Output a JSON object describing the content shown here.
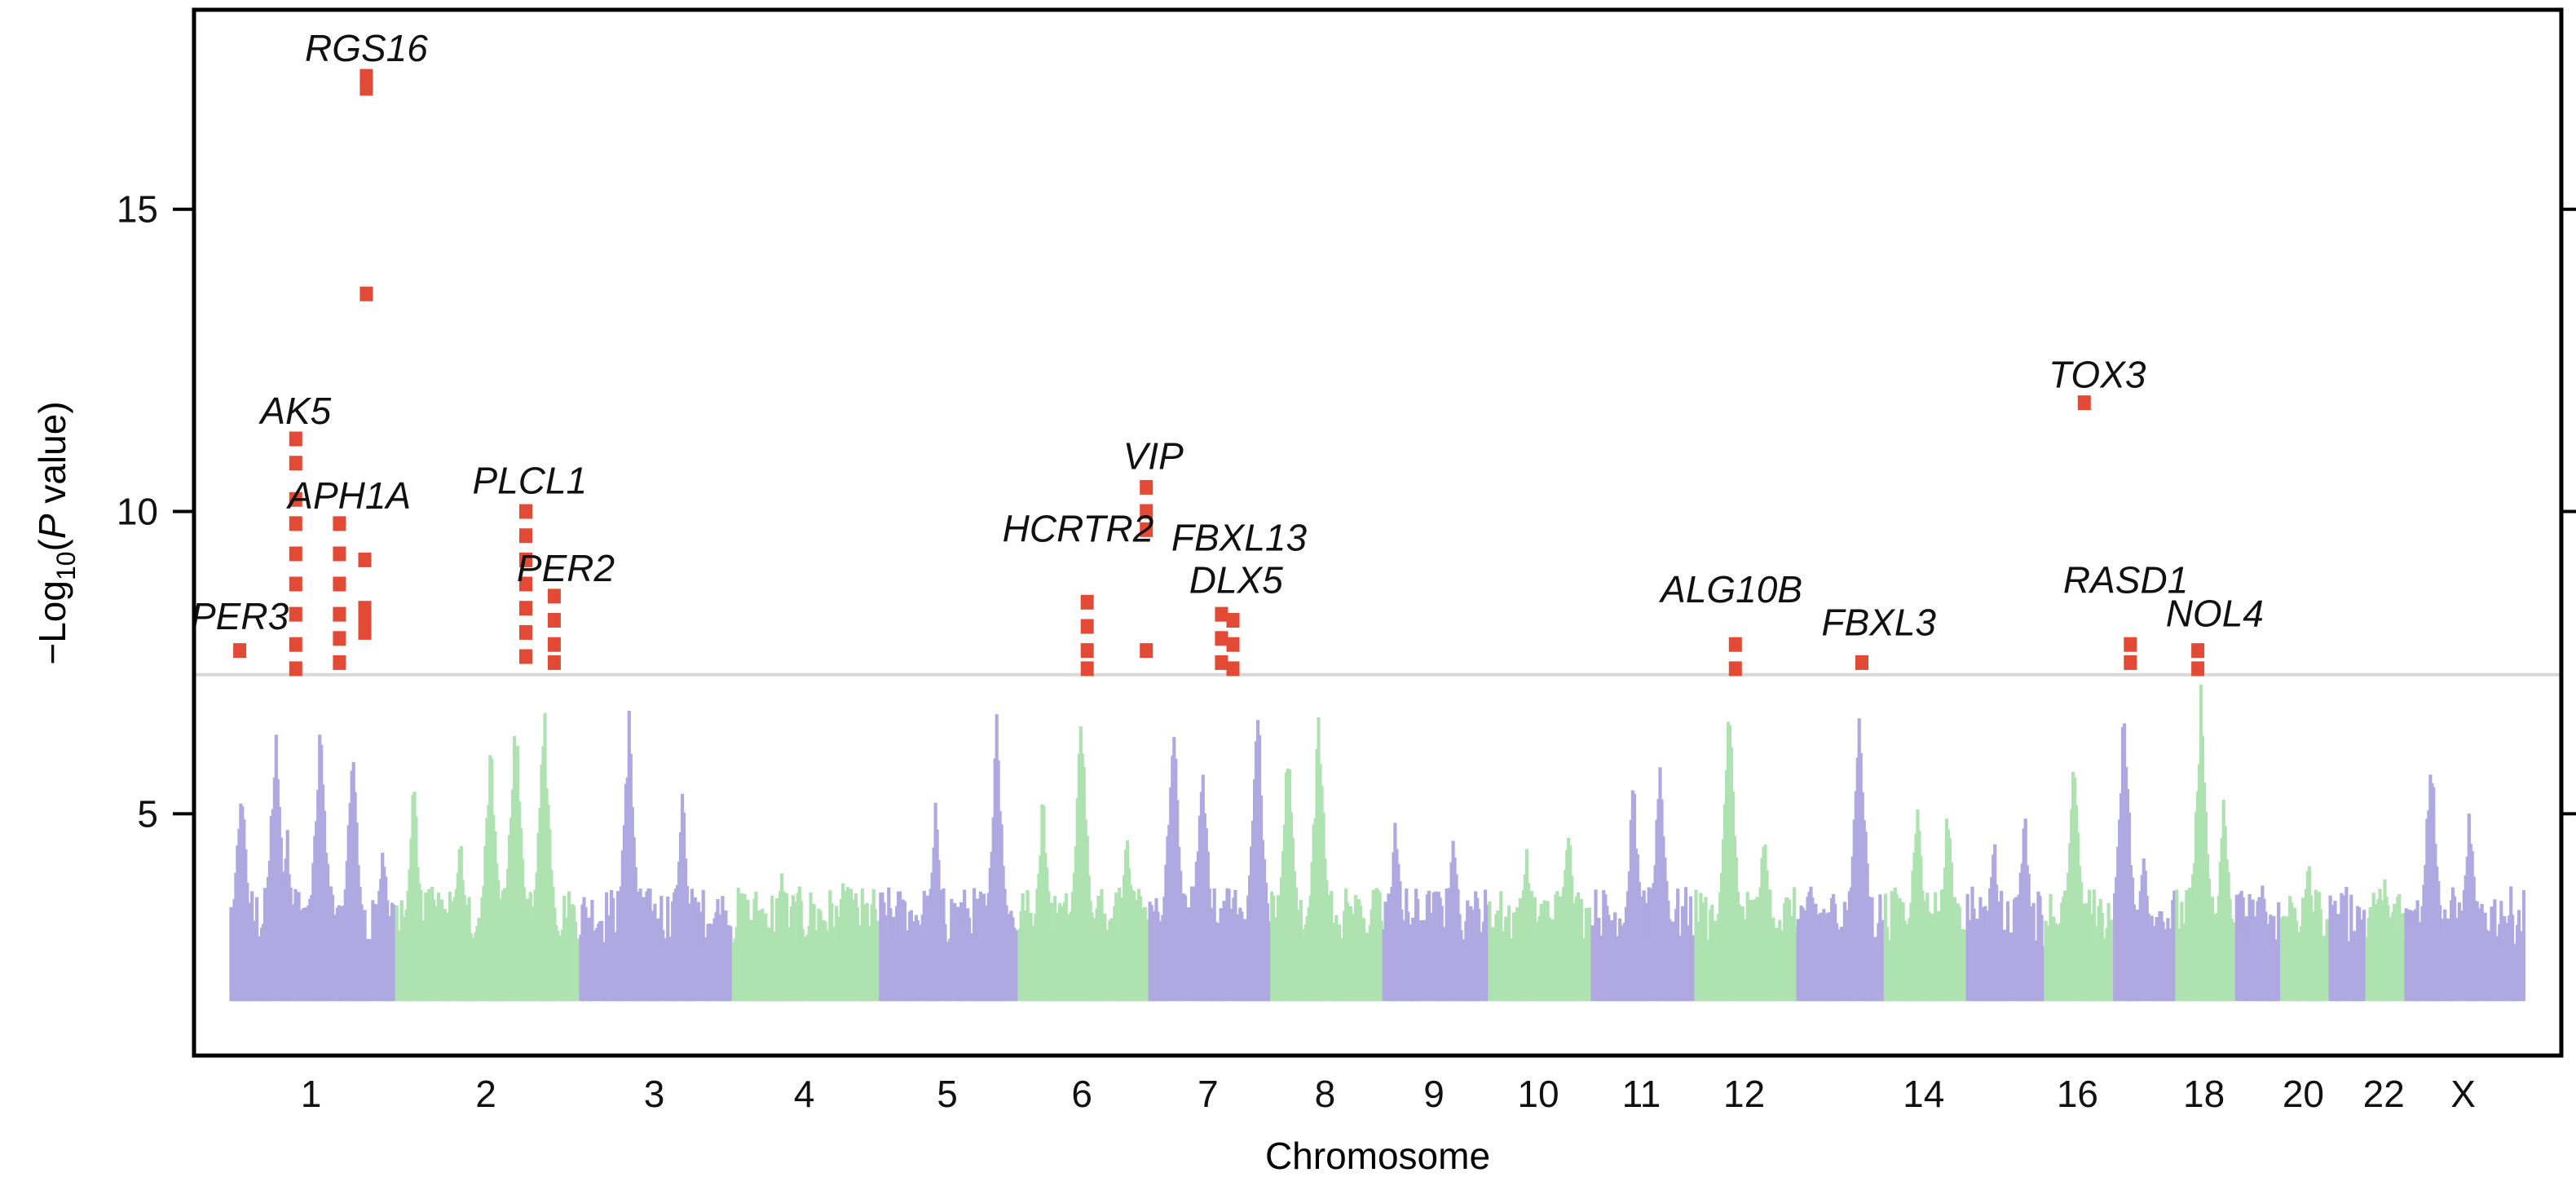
{
  "chart_data": {
    "type": "scatter",
    "title": "",
    "xlabel": "Chromosome",
    "ylabel_prefix": "−Log",
    "ylabel_sub": "10",
    "ylabel_open": "(",
    "ylabel_italic": "P",
    "ylabel_rest": " value)",
    "ylim": [
      1,
      18.3
    ],
    "y_ticks": [
      5,
      10,
      15
    ],
    "significance_threshold": 7.3,
    "colors": {
      "odd_chromosome": "#b0a8e0",
      "even_chromosome": "#aee3b1",
      "significant": "#e34a35",
      "threshold_line": "#d8d8d8",
      "frame": "#000000",
      "text": "#111111"
    },
    "chromosomes": [
      {
        "label": "1",
        "start": 0.0,
        "end": 216.0,
        "show_label": true
      },
      {
        "label": "2",
        "start": 216.0,
        "end": 456.0,
        "show_label": true
      },
      {
        "label": "3",
        "start": 456.0,
        "end": 655.0,
        "show_label": true
      },
      {
        "label": "4",
        "start": 655.0,
        "end": 847.0,
        "show_label": true
      },
      {
        "label": "5",
        "start": 847.0,
        "end": 1028.0,
        "show_label": true
      },
      {
        "label": "6",
        "start": 1028.0,
        "end": 1198.0,
        "show_label": true
      },
      {
        "label": "7",
        "start": 1198.0,
        "end": 1357.0,
        "show_label": true
      },
      {
        "label": "8",
        "start": 1357.0,
        "end": 1503.0,
        "show_label": true
      },
      {
        "label": "9",
        "start": 1503.0,
        "end": 1641.0,
        "show_label": true
      },
      {
        "label": "10",
        "start": 1641.0,
        "end": 1775.0,
        "show_label": true
      },
      {
        "label": "11",
        "start": 1775.0,
        "end": 1910.0,
        "show_label": true
      },
      {
        "label": "12",
        "start": 1910.0,
        "end": 2043.0,
        "show_label": true
      },
      {
        "label": "13",
        "start": 2043.0,
        "end": 2157.0,
        "show_label": false
      },
      {
        "label": "14",
        "start": 2157.0,
        "end": 2264.0,
        "show_label": true
      },
      {
        "label": "15",
        "start": 2264.0,
        "end": 2366.0,
        "show_label": false
      },
      {
        "label": "16",
        "start": 2366.0,
        "end": 2456.0,
        "show_label": true
      },
      {
        "label": "17",
        "start": 2456.0,
        "end": 2537.0,
        "show_label": false
      },
      {
        "label": "18",
        "start": 2537.0,
        "end": 2615.0,
        "show_label": true
      },
      {
        "label": "19",
        "start": 2615.0,
        "end": 2674.0,
        "show_label": false
      },
      {
        "label": "20",
        "start": 2674.0,
        "end": 2737.0,
        "show_label": true
      },
      {
        "label": "21",
        "start": 2737.0,
        "end": 2785.0,
        "show_label": false
      },
      {
        "label": "22",
        "start": 2785.0,
        "end": 2836.0,
        "show_label": true
      },
      {
        "label": "X",
        "start": 2836.0,
        "end": 2992.0,
        "show_label": true
      }
    ],
    "peaks": [
      {
        "pos": 15,
        "h": 6.0
      },
      {
        "pos": 60,
        "h": 7.0
      },
      {
        "pos": 75,
        "h": 4.8
      },
      {
        "pos": 118,
        "h": 7.2
      },
      {
        "pos": 160,
        "h": 6.6
      },
      {
        "pos": 200,
        "h": 4.6
      },
      {
        "pos": 240,
        "h": 5.8
      },
      {
        "pos": 300,
        "h": 4.9
      },
      {
        "pos": 340,
        "h": 6.7
      },
      {
        "pos": 372,
        "h": 7.2
      },
      {
        "pos": 410,
        "h": 7.2
      },
      {
        "pos": 520,
        "h": 7.0
      },
      {
        "pos": 590,
        "h": 5.6
      },
      {
        "pos": 720,
        "h": 4.2
      },
      {
        "pos": 800,
        "h": 4.0
      },
      {
        "pos": 920,
        "h": 5.3
      },
      {
        "pos": 1000,
        "h": 6.9
      },
      {
        "pos": 1060,
        "h": 5.6
      },
      {
        "pos": 1110,
        "h": 7.2
      },
      {
        "pos": 1170,
        "h": 5.0
      },
      {
        "pos": 1230,
        "h": 7.2
      },
      {
        "pos": 1268,
        "h": 6.5
      },
      {
        "pos": 1340,
        "h": 7.2
      },
      {
        "pos": 1380,
        "h": 6.6
      },
      {
        "pos": 1420,
        "h": 7.1
      },
      {
        "pos": 1520,
        "h": 5.2
      },
      {
        "pos": 1595,
        "h": 4.9
      },
      {
        "pos": 1690,
        "h": 4.6
      },
      {
        "pos": 1745,
        "h": 5.2
      },
      {
        "pos": 1830,
        "h": 5.8
      },
      {
        "pos": 1865,
        "h": 6.3
      },
      {
        "pos": 1955,
        "h": 7.2
      },
      {
        "pos": 2000,
        "h": 5.0
      },
      {
        "pos": 2090,
        "h": 3.8
      },
      {
        "pos": 2125,
        "h": 7.2
      },
      {
        "pos": 2200,
        "h": 5.6
      },
      {
        "pos": 2240,
        "h": 5.4
      },
      {
        "pos": 2300,
        "h": 4.8
      },
      {
        "pos": 2340,
        "h": 5.3
      },
      {
        "pos": 2405,
        "h": 6.3
      },
      {
        "pos": 2470,
        "h": 7.2
      },
      {
        "pos": 2495,
        "h": 4.6
      },
      {
        "pos": 2570,
        "h": 7.2
      },
      {
        "pos": 2600,
        "h": 5.5
      },
      {
        "pos": 2650,
        "h": 4.0
      },
      {
        "pos": 2710,
        "h": 4.4
      },
      {
        "pos": 2810,
        "h": 4.0
      },
      {
        "pos": 2870,
        "h": 6.6
      },
      {
        "pos": 2920,
        "h": 5.4
      }
    ],
    "points": [
      {
        "pos": 15,
        "p": 7.7
      },
      {
        "pos": 88,
        "p": 11.2
      },
      {
        "pos": 88,
        "p": 10.8
      },
      {
        "pos": 88,
        "p": 10.2
      },
      {
        "pos": 88,
        "p": 9.8
      },
      {
        "pos": 88,
        "p": 9.3
      },
      {
        "pos": 88,
        "p": 8.8
      },
      {
        "pos": 88,
        "p": 8.3
      },
      {
        "pos": 88,
        "p": 7.8
      },
      {
        "pos": 88,
        "p": 7.4
      },
      {
        "pos": 145,
        "p": 9.8
      },
      {
        "pos": 145,
        "p": 9.3
      },
      {
        "pos": 145,
        "p": 8.8
      },
      {
        "pos": 145,
        "p": 8.3
      },
      {
        "pos": 145,
        "p": 7.9
      },
      {
        "pos": 145,
        "p": 7.5
      },
      {
        "pos": 178,
        "p": 9.2
      },
      {
        "pos": 178,
        "p": 8.4
      },
      {
        "pos": 178,
        "p": 8.2
      },
      {
        "pos": 178,
        "p": 8.0
      },
      {
        "pos": 180,
        "p": 17.2
      },
      {
        "pos": 180,
        "p": 17.0
      },
      {
        "pos": 180,
        "p": 13.6
      },
      {
        "pos": 388,
        "p": 10.0
      },
      {
        "pos": 388,
        "p": 9.6
      },
      {
        "pos": 388,
        "p": 9.2
      },
      {
        "pos": 388,
        "p": 8.8
      },
      {
        "pos": 388,
        "p": 8.4
      },
      {
        "pos": 388,
        "p": 8.0
      },
      {
        "pos": 388,
        "p": 7.6
      },
      {
        "pos": 425,
        "p": 8.6
      },
      {
        "pos": 425,
        "p": 8.2
      },
      {
        "pos": 425,
        "p": 7.8
      },
      {
        "pos": 425,
        "p": 7.5
      },
      {
        "pos": 1120,
        "p": 8.5
      },
      {
        "pos": 1120,
        "p": 8.1
      },
      {
        "pos": 1120,
        "p": 7.7
      },
      {
        "pos": 1120,
        "p": 7.4
      },
      {
        "pos": 1197,
        "p": 10.4
      },
      {
        "pos": 1197,
        "p": 10.0
      },
      {
        "pos": 1197,
        "p": 9.7
      },
      {
        "pos": 1197,
        "p": 7.7
      },
      {
        "pos": 1295,
        "p": 8.3
      },
      {
        "pos": 1295,
        "p": 7.9
      },
      {
        "pos": 1295,
        "p": 7.5
      },
      {
        "pos": 1310,
        "p": 8.2
      },
      {
        "pos": 1310,
        "p": 7.8
      },
      {
        "pos": 1310,
        "p": 7.4
      },
      {
        "pos": 1965,
        "p": 7.8
      },
      {
        "pos": 1965,
        "p": 7.4
      },
      {
        "pos": 2130,
        "p": 7.5
      },
      {
        "pos": 2420,
        "p": 11.8
      },
      {
        "pos": 2480,
        "p": 7.8
      },
      {
        "pos": 2480,
        "p": 7.5
      },
      {
        "pos": 2568,
        "p": 7.7
      },
      {
        "pos": 2568,
        "p": 7.4
      }
    ],
    "annotations": [
      {
        "text": "PER3",
        "pos": 15,
        "y": 8.05
      },
      {
        "text": "AK5",
        "pos": 88,
        "y": 11.45
      },
      {
        "text": "APH1A",
        "pos": 158,
        "y": 10.05
      },
      {
        "text": "RGS16",
        "pos": 180,
        "y": 17.45
      },
      {
        "text": "PLCL1",
        "pos": 393,
        "y": 10.3
      },
      {
        "text": "PER2",
        "pos": 440,
        "y": 8.85
      },
      {
        "text": "HCRTR2",
        "pos": 1108,
        "y": 9.5
      },
      {
        "text": "VIP",
        "pos": 1206,
        "y": 10.7
      },
      {
        "text": "FBXL13",
        "pos": 1318,
        "y": 9.35
      },
      {
        "text": "DLX5",
        "pos": 1314,
        "y": 8.65
      },
      {
        "text": "ALG10B",
        "pos": 1960,
        "y": 8.5
      },
      {
        "text": "FBXL3",
        "pos": 2152,
        "y": 7.95
      },
      {
        "text": "TOX3",
        "pos": 2437,
        "y": 12.05
      },
      {
        "text": "RASD1",
        "pos": 2474,
        "y": 8.65
      },
      {
        "text": "NOL4",
        "pos": 2590,
        "y": 8.1
      }
    ]
  }
}
